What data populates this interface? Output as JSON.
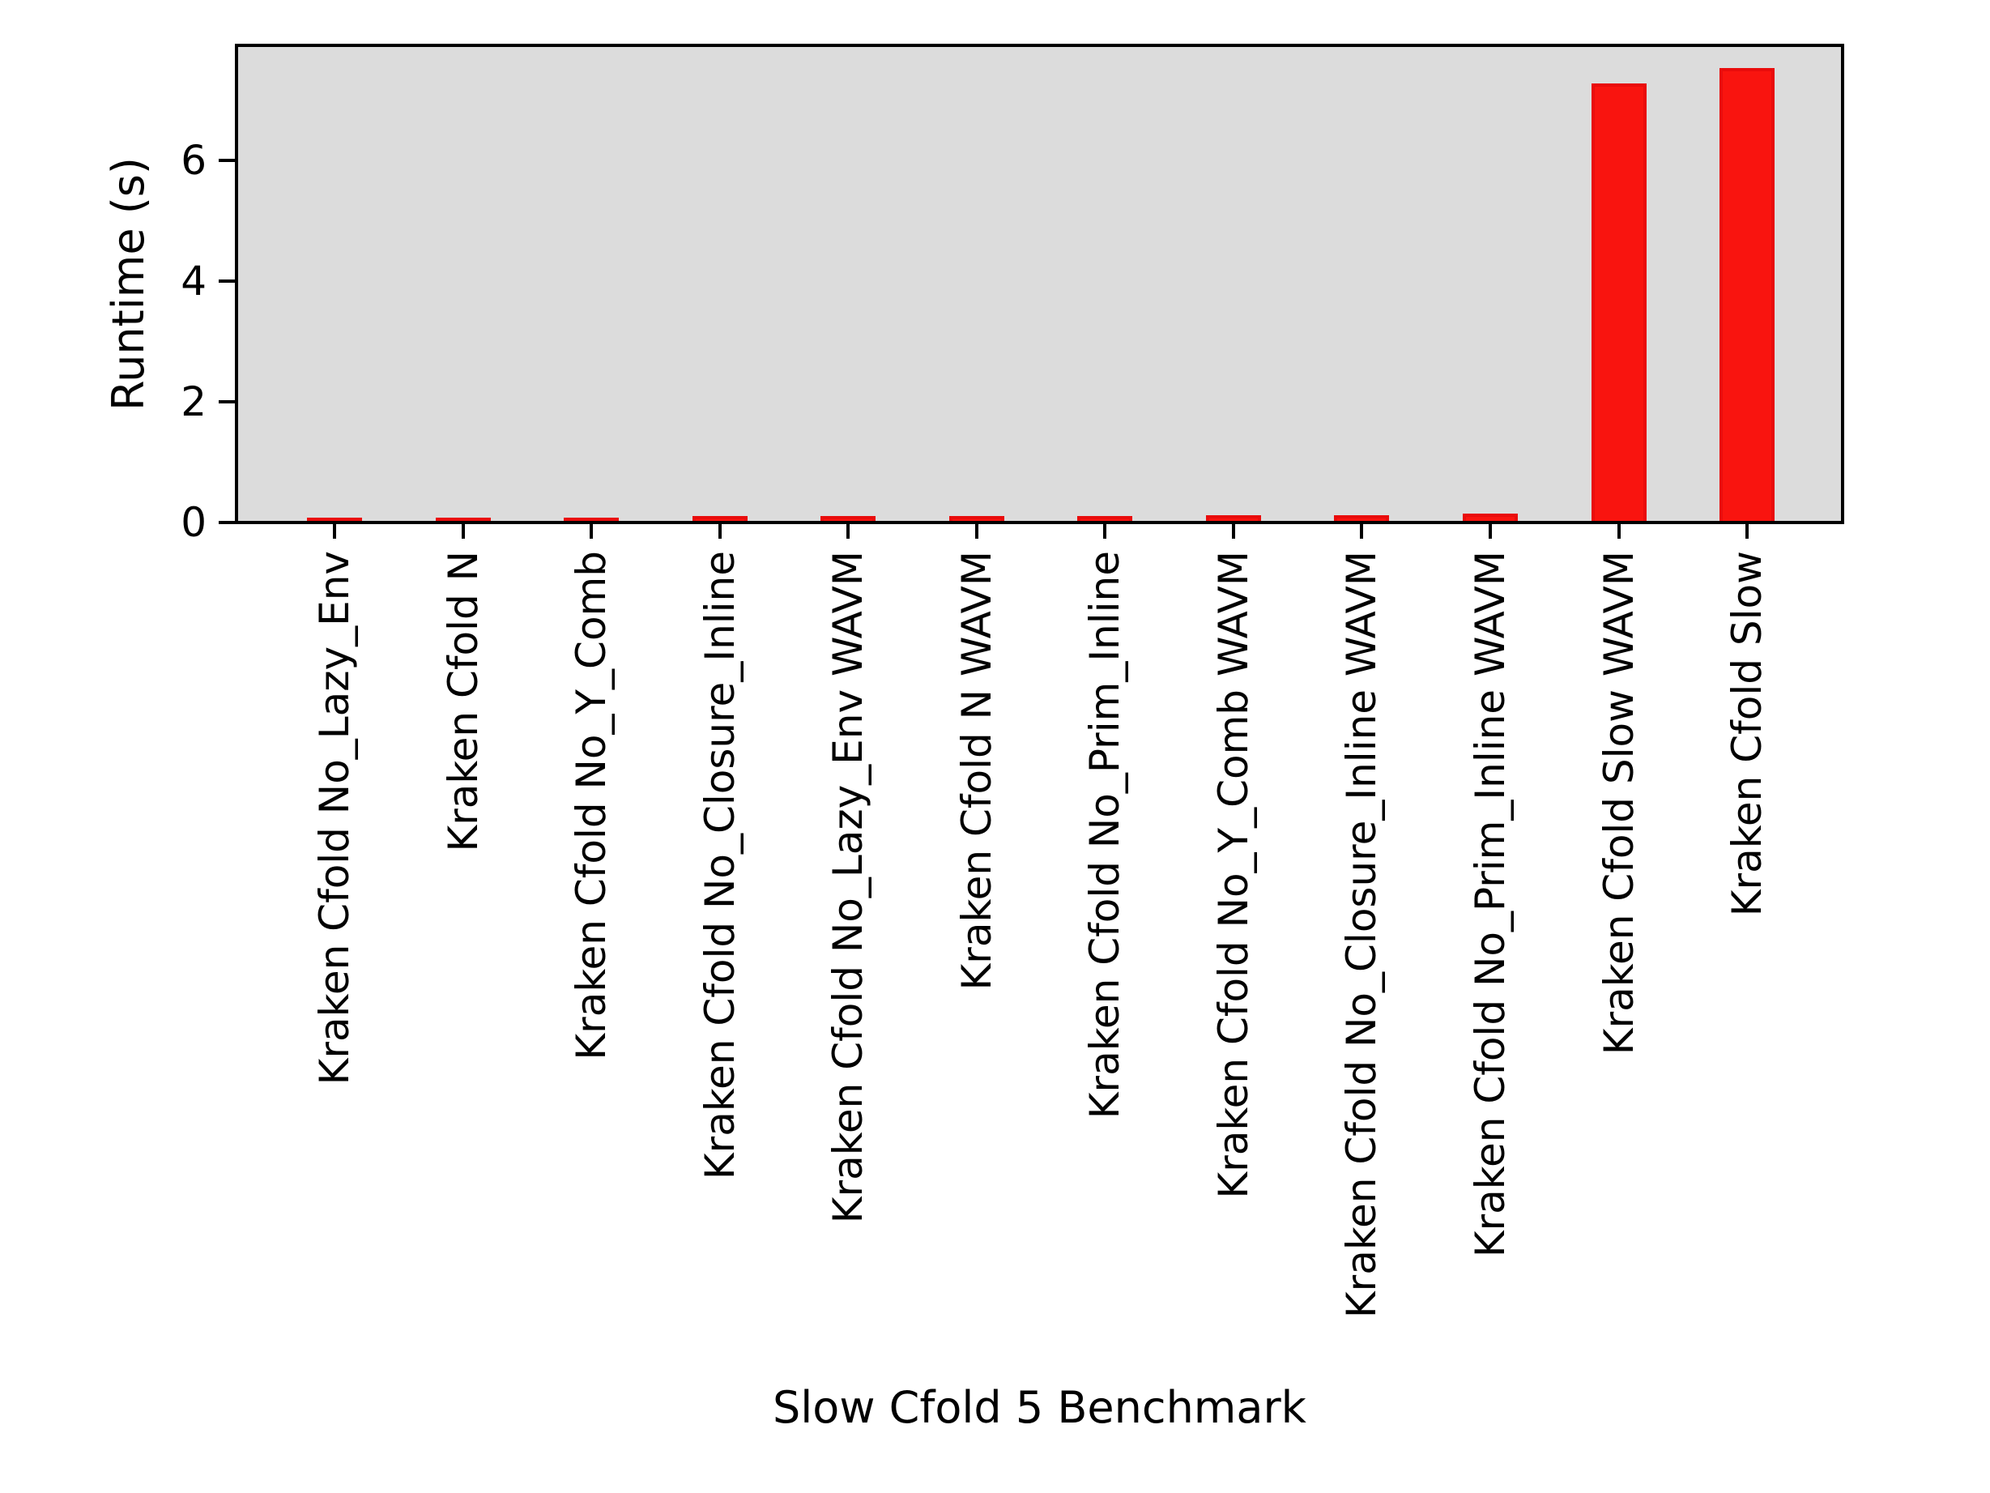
{
  "chart_data": {
    "type": "bar",
    "title": "",
    "xlabel": "Slow Cfold 5 Benchmark",
    "ylabel": "Runtime (s)",
    "categories": [
      "Kraken Cfold No_Lazy_Env",
      "Kraken Cfold N",
      "Kraken Cfold No_Y_Comb",
      "Kraken Cfold No_Closure_Inline",
      "Kraken Cfold No_Lazy_Env WAVM",
      "Kraken Cfold N WAVM",
      "Kraken Cfold No_Prim_Inline",
      "Kraken Cfold No_Y_Comb WAVM",
      "Kraken Cfold No_Closure_Inline WAVM",
      "Kraken Cfold No_Prim_Inline WAVM",
      "Kraken Cfold Slow WAVM",
      "Kraken Cfold Slow"
    ],
    "values": [
      0.05,
      0.05,
      0.05,
      0.08,
      0.08,
      0.08,
      0.08,
      0.09,
      0.09,
      0.12,
      7.25,
      7.5
    ],
    "yticks": [
      0,
      2,
      4,
      6
    ],
    "ylim": [
      0,
      7.85
    ],
    "grid": false,
    "legend": {
      "visible": true,
      "position": "upper right",
      "entries": []
    },
    "colors": {
      "bar_fill": "#f9140f",
      "bar_edge": "#e90c0c",
      "plot_background": "#dcdcdc",
      "figure_background": "#ffffff",
      "axis": "#000000",
      "text": "#000000",
      "legend_border": "#d2d2d2",
      "legend_background": "#ffffff"
    }
  }
}
